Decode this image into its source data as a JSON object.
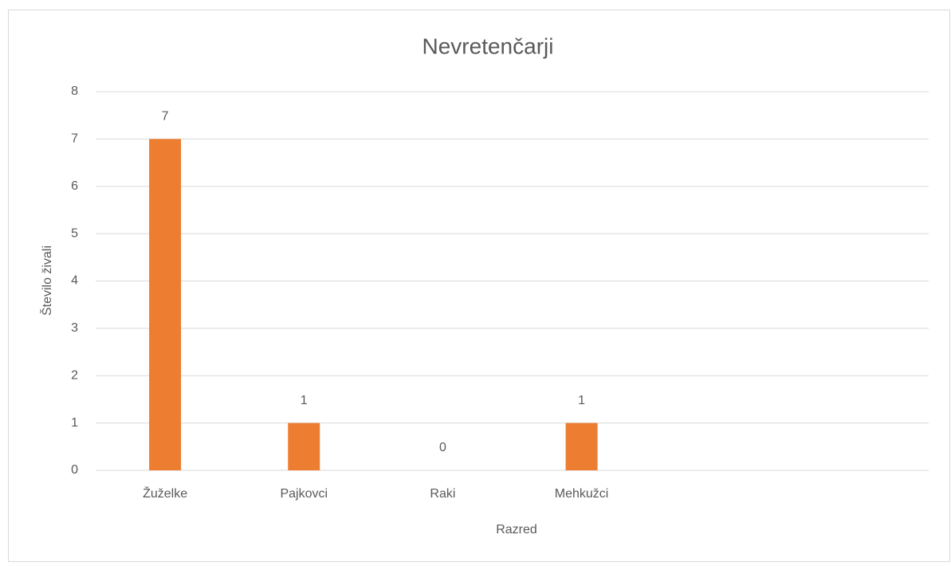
{
  "chart_data": {
    "type": "bar",
    "title": "Nevretenčarji",
    "x_label": "Razred",
    "y_label": "Število živali",
    "categories": [
      "Žuželke",
      "Pajkovci",
      "Raki",
      "Mehkužci",
      null,
      null
    ],
    "values": [
      7,
      1,
      0,
      1,
      null,
      null
    ],
    "color": "#ed7d31",
    "ylim": [
      0,
      8
    ],
    "yticks": [
      0,
      1,
      2,
      3,
      4,
      5,
      6,
      7,
      8
    ],
    "grid": true,
    "data_labels": true
  }
}
